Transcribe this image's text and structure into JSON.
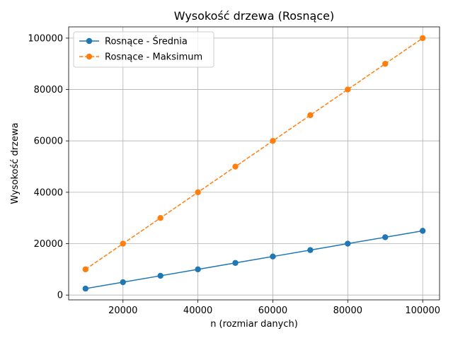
{
  "chart_data": {
    "type": "line",
    "title": "Wysokość drzewa (Rosnące)",
    "xlabel": "n (rozmiar danych)",
    "ylabel": "Wysokość drzewa",
    "x": [
      10000,
      20000,
      30000,
      40000,
      50000,
      60000,
      70000,
      80000,
      90000,
      100000
    ],
    "xlim": [
      5500,
      104500
    ],
    "ylim": [
      -1875,
      104375
    ],
    "xticks": [
      20000,
      40000,
      60000,
      80000,
      100000
    ],
    "yticks": [
      0,
      20000,
      40000,
      60000,
      80000,
      100000
    ],
    "xtick_labels": [
      "20000",
      "40000",
      "60000",
      "80000",
      "100000"
    ],
    "ytick_labels": [
      "0",
      "20000",
      "40000",
      "60000",
      "80000",
      "100000"
    ],
    "grid": true,
    "legend_position": "top-left",
    "series": [
      {
        "name": "Rosnące - Średnia",
        "values": [
          2500,
          5000,
          7500,
          10000,
          12500,
          15000,
          17500,
          20000,
          22500,
          25000
        ],
        "color": "#1f77b4",
        "line_style": "solid",
        "marker": "circle"
      },
      {
        "name": "Rosnące - Maksimum",
        "values": [
          10000,
          20000,
          30000,
          40000,
          50000,
          60000,
          70000,
          80000,
          90000,
          100000
        ],
        "color": "#ff7f0e",
        "line_style": "dashed",
        "marker": "circle"
      }
    ]
  }
}
